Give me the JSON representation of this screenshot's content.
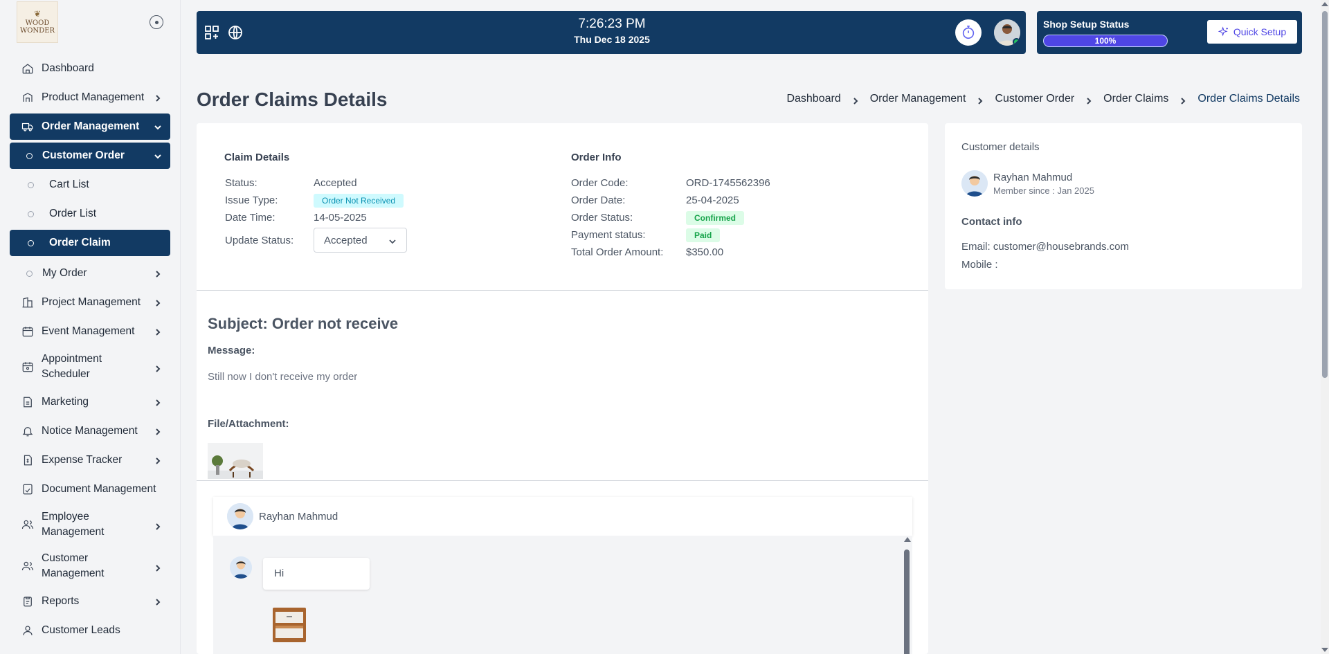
{
  "brand": {
    "logo_line1": "WOOD",
    "logo_line2": "WONDER"
  },
  "sidebar": {
    "items": [
      {
        "label": "Dashboard",
        "icon": "home-icon"
      },
      {
        "label": "Product Management",
        "icon": "product-icon"
      },
      {
        "label": "Order Management",
        "icon": "truck-icon"
      },
      {
        "label": "Customer Order"
      },
      {
        "label": "Cart List"
      },
      {
        "label": "Order List"
      },
      {
        "label": "Order Claim"
      },
      {
        "label": "My Order"
      },
      {
        "label": "Project Management",
        "icon": "building-icon"
      },
      {
        "label": "Event Management",
        "icon": "calendar-icon"
      },
      {
        "label": "Appointment Scheduler",
        "icon": "calendar-clock-icon"
      },
      {
        "label": "Marketing",
        "icon": "marketing-icon"
      },
      {
        "label": "Notice Management",
        "icon": "bell-icon"
      },
      {
        "label": "Expense Tracker",
        "icon": "expense-icon"
      },
      {
        "label": "Document Management",
        "icon": "document-icon"
      },
      {
        "label": "Employee Management",
        "icon": "users-icon"
      },
      {
        "label": "Customer Management",
        "icon": "users-icon"
      },
      {
        "label": "Reports",
        "icon": "clipboard-icon"
      },
      {
        "label": "Customer Leads",
        "icon": "user-icon"
      }
    ]
  },
  "topbar": {
    "time": "7:26:23 PM",
    "date": "Thu Dec 18 2025",
    "setup_label": "Shop Setup Status",
    "setup_progress": "100%",
    "quick_setup": "Quick Setup"
  },
  "page": {
    "title": "Order Claims Details",
    "breadcrumb": [
      "Dashboard",
      "Order Management",
      "Customer Order",
      "Order Claims",
      "Order Claims Details"
    ]
  },
  "claim": {
    "title": "Claim Details",
    "status_label": "Status:",
    "status": "Accepted",
    "issue_label": "Issue Type:",
    "issue": "Order Not Received",
    "datetime_label": "Date Time:",
    "datetime": "14-05-2025",
    "update_label": "Update Status:",
    "update_value": "Accepted"
  },
  "order": {
    "title": "Order Info",
    "code_label": "Order Code:",
    "code": "ORD-1745562396",
    "date_label": "Order Date:",
    "date": "25-04-2025",
    "status_label": "Order Status:",
    "status": "Confirmed",
    "payment_label": "Payment status:",
    "payment": "Paid",
    "total_label": "Total Order Amount:",
    "total": "$350.00"
  },
  "message": {
    "subject": "Subject: Order not receive",
    "message_label": "Message:",
    "message": "Still now I don't receive my order",
    "file_label": "File/Attachment:"
  },
  "chat": {
    "name": "Rayhan Mahmud",
    "first_message": "Hi"
  },
  "customer": {
    "title": "Customer details",
    "name": "Rayhan Mahmud",
    "since": "Member since : Jan 2025",
    "contact_title": "Contact info",
    "email": "Email: customer@housebrands.com",
    "mobile": "Mobile :"
  },
  "colors": {
    "primary": "#123a63",
    "accent": "#4f46e5",
    "success": "#16a34a",
    "info": "#0891b2"
  }
}
